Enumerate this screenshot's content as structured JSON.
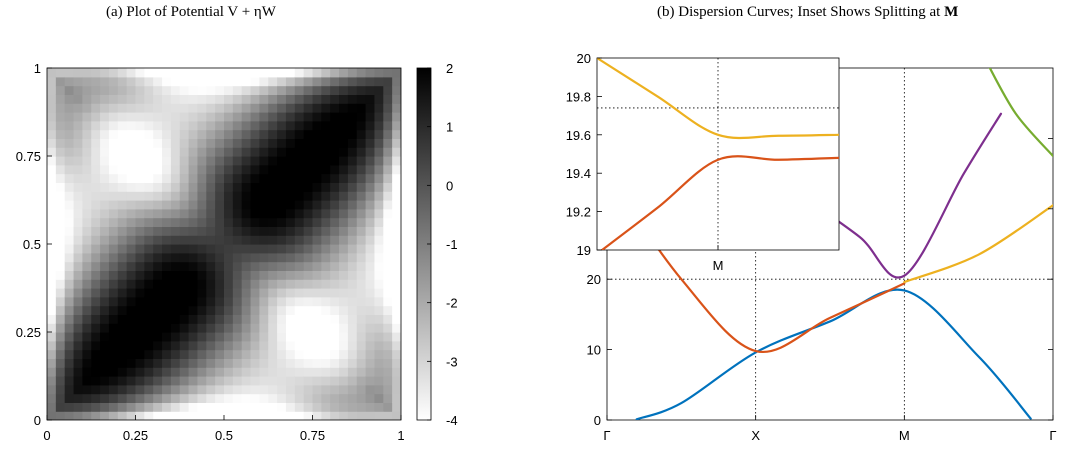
{
  "captions": {
    "a": "(a) Plot of Potential V + ηW",
    "b_prefix": "(b) Dispersion Curves; Inset Shows Splitting at ",
    "b_bold": "M"
  },
  "chart_data": [
    {
      "type": "heatmap",
      "title": "(a) Plot of Potential V + ηW",
      "xlim": [
        0,
        1
      ],
      "ylim": [
        0,
        1
      ],
      "xticks": [
        "0",
        "0.25",
        "0.5",
        "0.75",
        "1"
      ],
      "yticks": [
        "0",
        "0.25",
        "0.5",
        "0.75",
        "1"
      ],
      "colorbar": {
        "range": [
          -4,
          2
        ],
        "ticks": [
          "2",
          "1",
          "0",
          "-1",
          "-2",
          "-3",
          "-4"
        ],
        "colormap": "gray (white = -4, black = 2)"
      },
      "grid": false
    },
    {
      "type": "line",
      "title": "(b) Dispersion Curves; Inset Shows Splitting at M",
      "ylim": [
        0,
        50
      ],
      "yticks": [
        "0",
        "10",
        "20"
      ],
      "xticks": [
        "Γ",
        "X",
        "M",
        "Γ"
      ],
      "reference_lines": {
        "y": 20,
        "x": [
          "X",
          "M"
        ]
      },
      "series": [
        {
          "color": "#0072bd",
          "points": [
            [
              0.2,
              0.1
            ],
            [
              0.5,
              2.4
            ],
            [
              1,
              9.6
            ],
            [
              1.5,
              14
            ],
            [
              2,
              18.4
            ],
            [
              2.5,
              9
            ],
            [
              2.85,
              0.2
            ]
          ]
        },
        {
          "color": "#d95319",
          "points": [
            [
              0,
              35
            ],
            [
              0.5,
              20
            ],
            [
              1,
              9.8
            ],
            [
              1.5,
              14.5
            ],
            [
              2,
              19.4
            ]
          ]
        },
        {
          "color": "#edb120",
          "points": [
            [
              2,
              19.6
            ],
            [
              2.5,
              23.5
            ],
            [
              3,
              30.5
            ]
          ]
        },
        {
          "color": "#7e2f8e",
          "points": [
            [
              1.3,
              32
            ],
            [
              1.7,
              26
            ],
            [
              2,
              20.5
            ],
            [
              2.4,
              35
            ],
            [
              2.65,
              43.5
            ]
          ]
        },
        {
          "color": "#77ac30",
          "points": [
            [
              2.55,
              51
            ],
            [
              2.75,
              43.5
            ],
            [
              3,
              37.5
            ]
          ]
        }
      ],
      "inset": {
        "xlim": [
          -0.5,
          0.5
        ],
        "ylim": [
          19,
          20
        ],
        "yticks": [
          "19",
          "19.2",
          "19.4",
          "19.6",
          "19.8",
          "20"
        ],
        "xticks": [
          "M"
        ],
        "reference_lines": {
          "y": 19.74,
          "x": 0
        },
        "series": [
          {
            "color": "#edb120",
            "points": [
              [
                -0.5,
                20
              ],
              [
                -0.25,
                19.8
              ],
              [
                0,
                19.6
              ],
              [
                0.25,
                19.595
              ],
              [
                0.5,
                19.6
              ]
            ]
          },
          {
            "color": "#d95319",
            "points": [
              [
                -0.5,
                18.98
              ],
              [
                -0.25,
                19.22
              ],
              [
                0,
                19.47
              ],
              [
                0.25,
                19.47
              ],
              [
                0.5,
                19.48
              ]
            ]
          }
        ]
      }
    }
  ],
  "colors": {
    "blue": "#0072bd",
    "orange": "#d95319",
    "yellow": "#edb120",
    "purple": "#7e2f8e",
    "green": "#77ac30"
  }
}
